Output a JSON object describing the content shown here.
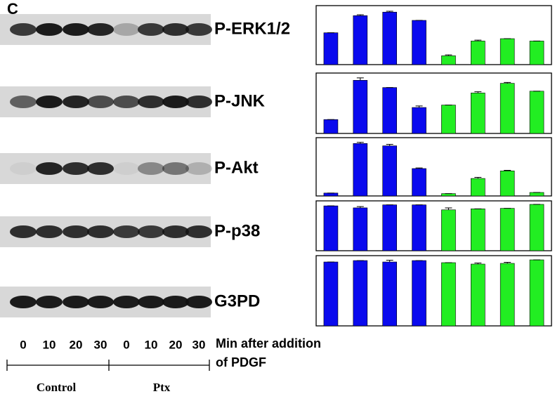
{
  "figure": {
    "panel_label": "C",
    "blots": [
      "P-ERK1/2",
      "P-JNK",
      "P-Akt",
      "P-p38",
      "G3PD"
    ],
    "lanes": [
      "0",
      "10",
      "20",
      "30",
      "0",
      "10",
      "20",
      "30"
    ],
    "axis_label_lines": [
      "Min after addition",
      "of PDGF"
    ],
    "groups": [
      "Control",
      "Ptx"
    ]
  },
  "chart_data": [
    {
      "type": "bar",
      "values": [
        54,
        83,
        89,
        75,
        15,
        40,
        44,
        40
      ],
      "errors": [
        0,
        1.5,
        1.5,
        0,
        1.5,
        1.5,
        0,
        0
      ],
      "colors": [
        "#0a0aee",
        "#0a0aee",
        "#0a0aee",
        "#0a0aee",
        "#22ee22",
        "#22ee22",
        "#22ee22",
        "#22ee22"
      ],
      "ylim": [
        0,
        100
      ]
    },
    {
      "type": "bar",
      "values": [
        23,
        88,
        76,
        43,
        47,
        67,
        83,
        70
      ],
      "errors": [
        0,
        4,
        0,
        2.5,
        0,
        2,
        1.5,
        0
      ],
      "colors": [
        "#0a0aee",
        "#0a0aee",
        "#0a0aee",
        "#0a0aee",
        "#22ee22",
        "#22ee22",
        "#22ee22",
        "#22ee22"
      ],
      "ylim": [
        0,
        100
      ]
    },
    {
      "type": "bar",
      "values": [
        5,
        90,
        86,
        47,
        4,
        30,
        43,
        6
      ],
      "errors": [
        0,
        2,
        2.5,
        1,
        0,
        2,
        1,
        0
      ],
      "colors": [
        "#0a0aee",
        "#0a0aee",
        "#0a0aee",
        "#0a0aee",
        "#22ee22",
        "#22ee22",
        "#22ee22",
        "#22ee22"
      ],
      "ylim": [
        0,
        100
      ]
    },
    {
      "type": "bar",
      "values": [
        90,
        86,
        92,
        92,
        82,
        84,
        85,
        93
      ],
      "errors": [
        0,
        2.5,
        0,
        0,
        4,
        0,
        0,
        0
      ],
      "colors": [
        "#0a0aee",
        "#0a0aee",
        "#0a0aee",
        "#0a0aee",
        "#22ee22",
        "#22ee22",
        "#22ee22",
        "#22ee22"
      ],
      "ylim": [
        0,
        100
      ]
    },
    {
      "type": "bar",
      "values": [
        91,
        93,
        91,
        93,
        90,
        88,
        89,
        94
      ],
      "errors": [
        0,
        0,
        2.5,
        0,
        0,
        1.5,
        1.5,
        0
      ],
      "colors": [
        "#0a0aee",
        "#0a0aee",
        "#0a0aee",
        "#0a0aee",
        "#22ee22",
        "#22ee22",
        "#22ee22",
        "#22ee22"
      ],
      "ylim": [
        0,
        100
      ]
    }
  ]
}
